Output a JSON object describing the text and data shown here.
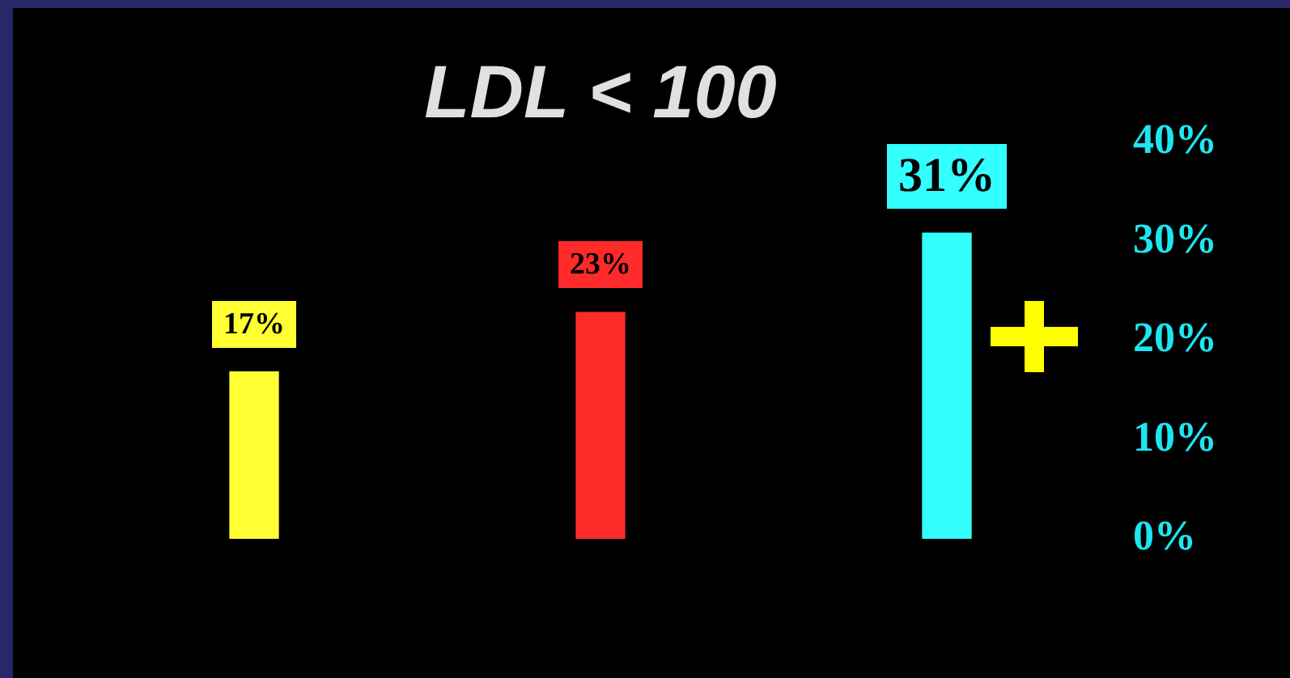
{
  "chart_data": {
    "type": "bar",
    "title": "LDL < 100",
    "categories": [
      null,
      null,
      null
    ],
    "values": [
      17,
      23,
      31
    ],
    "colors": [
      "#ffff33",
      "#ff2a2a",
      "#33ffff"
    ],
    "value_labels": [
      "17%",
      "23%",
      "31%"
    ],
    "ylim": [
      0,
      40
    ],
    "yticks": [
      {
        "value": 0,
        "label": "0%"
      },
      {
        "value": 10,
        "label": "10%"
      },
      {
        "value": 20,
        "label": "20%"
      },
      {
        "value": 30,
        "label": "30%"
      },
      {
        "value": 40,
        "label": "40%"
      }
    ],
    "grid": false,
    "legend": false
  }
}
